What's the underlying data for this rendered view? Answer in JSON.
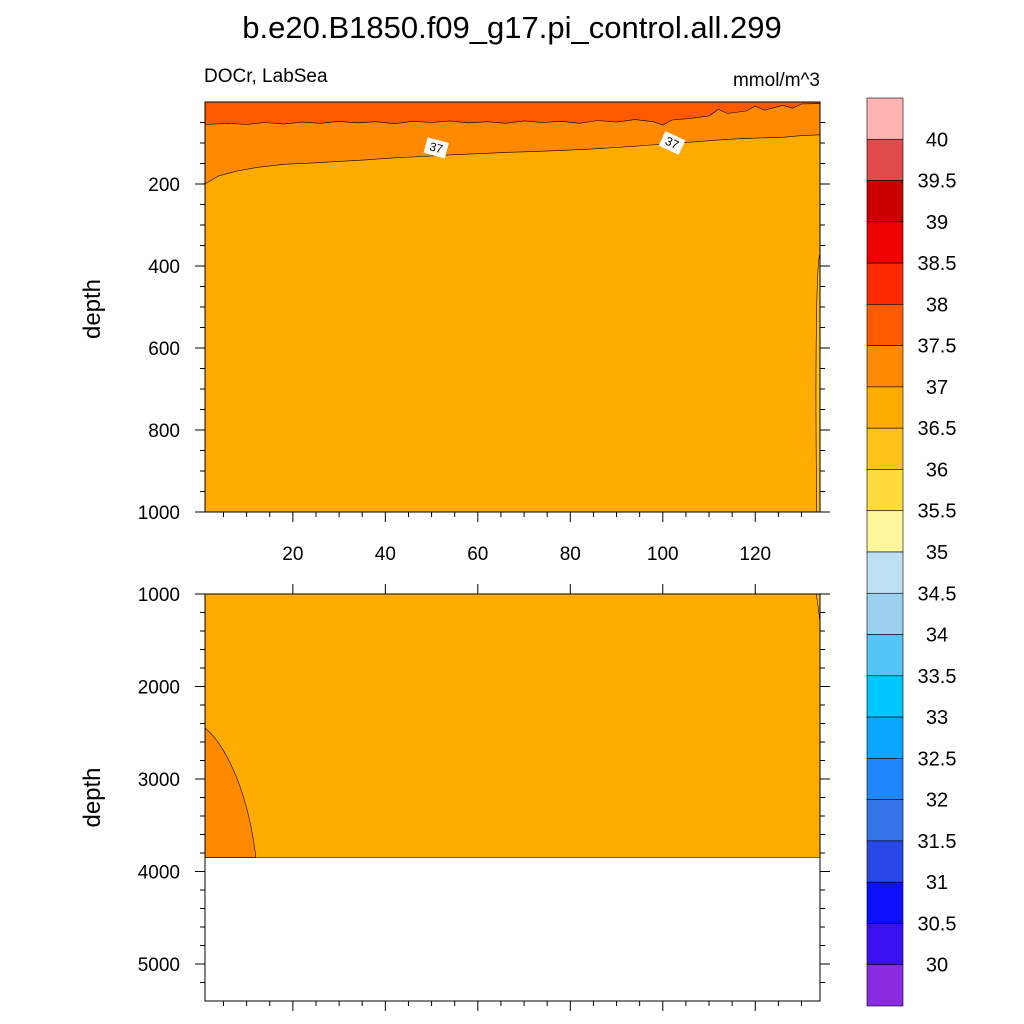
{
  "title": "b.e20.B1850.f09_g17.pi_control.all.299",
  "subtitle_left": "DOCr, LabSea",
  "subtitle_right": "mmol/m^3",
  "colorbar": {
    "labels": [
      "40",
      "39.5",
      "39",
      "38.5",
      "38",
      "37.5",
      "37",
      "36.5",
      "36",
      "35.5",
      "35",
      "34.5",
      "34",
      "33.5",
      "33",
      "32.5",
      "32",
      "31.5",
      "31",
      "30.5",
      "30"
    ],
    "colors": [
      "#ffb3b3",
      "#e04a4a",
      "#cc0000",
      "#f00000",
      "#ff2a00",
      "#ff5a00",
      "#ff8a00",
      "#ffab00",
      "#ffc21a",
      "#ffdc3c",
      "#fff59a",
      "#bde0f2",
      "#9bd0ee",
      "#55c5f5",
      "#00c8ff",
      "#0aa6ff",
      "#1f88ff",
      "#3574e8",
      "#2848e8",
      "#0f0fff",
      "#3a10f0",
      "#8a2be2"
    ]
  },
  "chart_data": [
    {
      "type": "heatmap",
      "panel": "upper",
      "title": "b.e20.B1850.f09_g17.pi_control.all.299",
      "subtitle_left": "DOCr, LabSea",
      "subtitle_right": "mmol/m^3",
      "ylabel": "depth",
      "xlabel": "",
      "xlim": [
        1,
        134
      ],
      "ylim": [
        0,
        1000
      ],
      "y_inverted": true,
      "xticks": [
        "20",
        "40",
        "60",
        "80",
        "100",
        "120"
      ],
      "yticks": [
        "200",
        "400",
        "600",
        "800",
        "1000"
      ],
      "contour_levels": [
        30,
        30.5,
        31,
        31.5,
        32,
        32.5,
        33,
        33.5,
        34,
        34.5,
        35,
        35.5,
        36,
        36.5,
        37,
        37.5,
        38,
        38.5,
        39,
        39.5,
        40
      ],
      "contour_labels": [
        "37",
        "37"
      ],
      "regions": [
        {
          "range": "37.5-38",
          "description": "surface layer, depth 0 to about 50"
        },
        {
          "range": "37-37.5",
          "description": "from about 50 down to about 200 at x=1, shoaling to about 80 at x=134"
        },
        {
          "range": "36.5-37",
          "description": "bulk of the interior below the 37 contour"
        },
        {
          "range": "36-36.5",
          "description": "narrow strip at the eastern edge, x about 133-134, below depth about 380"
        }
      ]
    },
    {
      "type": "heatmap",
      "panel": "lower",
      "ylabel": "depth",
      "xlabel": "",
      "xlim": [
        1,
        134
      ],
      "ylim": [
        1000,
        5400
      ],
      "y_inverted": true,
      "yticks": [
        "1000",
        "2000",
        "3000",
        "4000",
        "5000"
      ],
      "ocean_floor_depth": 3850,
      "regions": [
        {
          "range": "36.5-37",
          "description": "interior from 1000 down to the ocean floor at about 3850"
        },
        {
          "range": "37-37.5",
          "description": "western wedge, x 1 to about 12, depth about 2450 to 3850"
        },
        {
          "range": "36-36.5",
          "description": "sliver at the eastern edge between depth 1000 and about 1300"
        }
      ]
    }
  ]
}
